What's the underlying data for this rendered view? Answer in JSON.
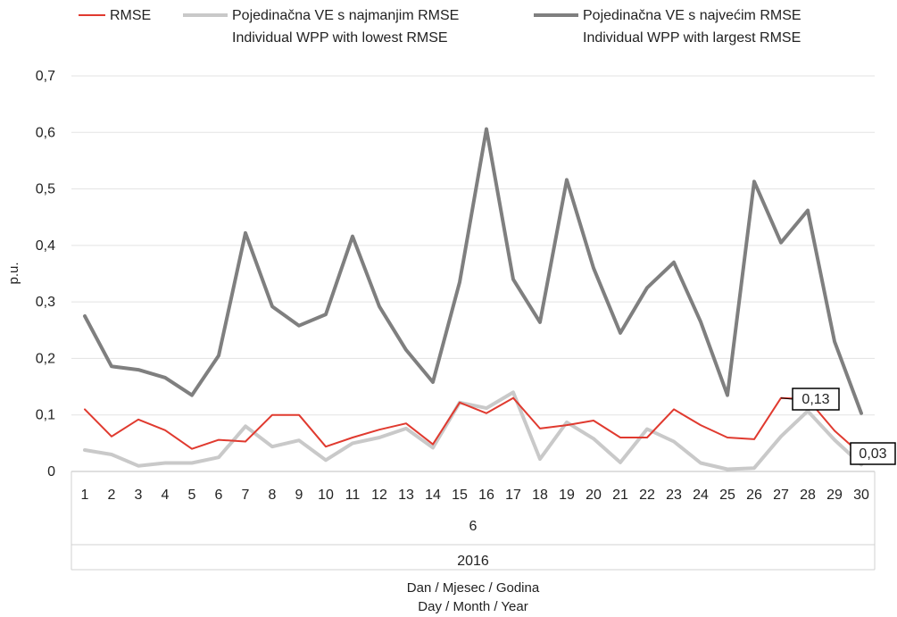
{
  "chart_data": {
    "type": "line",
    "ylabel": "p.u.",
    "ylim": [
      0,
      0.7
    ],
    "y_ticks": [
      "0",
      "0,1",
      "0,2",
      "0,3",
      "0,4",
      "0,5",
      "0,6",
      "0,7"
    ],
    "x": [
      "1",
      "2",
      "3",
      "4",
      "5",
      "6",
      "7",
      "8",
      "9",
      "10",
      "11",
      "12",
      "13",
      "14",
      "15",
      "16",
      "17",
      "18",
      "19",
      "20",
      "21",
      "22",
      "23",
      "24",
      "25",
      "26",
      "27",
      "28",
      "29",
      "30"
    ],
    "month_label": "6",
    "year_label": "2016",
    "xlabel_line1": "Dan / Mjesec / Godina",
    "xlabel_line2": "Day / Month / Year",
    "grid": "horizontal",
    "legend_position": "top",
    "series": [
      {
        "name": "RMSE",
        "color": "#e03a2f",
        "values": [
          0.11,
          0.062,
          0.092,
          0.073,
          0.04,
          0.056,
          0.053,
          0.1,
          0.1,
          0.044,
          0.06,
          0.074,
          0.085,
          0.048,
          0.122,
          0.103,
          0.13,
          0.076,
          0.082,
          0.09,
          0.06,
          0.06,
          0.11,
          0.082,
          0.06,
          0.057,
          0.13,
          0.128,
          0.072,
          0.03
        ]
      },
      {
        "name": "Pojedinačna VE s najmanjim RMSE",
        "name_line2": "Individual WPP with lowest RMSE",
        "color": "#c9c9c9",
        "values": [
          0.038,
          0.03,
          0.01,
          0.015,
          0.015,
          0.025,
          0.08,
          0.044,
          0.055,
          0.02,
          0.05,
          0.06,
          0.076,
          0.042,
          0.122,
          0.112,
          0.14,
          0.022,
          0.087,
          0.058,
          0.016,
          0.075,
          0.053,
          0.015,
          0.004,
          0.006,
          0.062,
          0.107,
          0.056,
          0.012
        ]
      },
      {
        "name": "Pojedinačna VE s najvećim RMSE",
        "name_line2": "Individual WPP with largest RMSE",
        "color": "#7f7f7f",
        "values": [
          0.275,
          0.186,
          0.18,
          0.166,
          0.135,
          0.205,
          0.422,
          0.292,
          0.258,
          0.278,
          0.416,
          0.292,
          0.215,
          0.158,
          0.335,
          0.606,
          0.34,
          0.264,
          0.516,
          0.36,
          0.245,
          0.325,
          0.37,
          0.265,
          0.135,
          0.513,
          0.405,
          0.462,
          0.23,
          0.103
        ]
      }
    ],
    "annotations": [
      {
        "text": "0,13",
        "series": 0,
        "index": 26
      },
      {
        "text": "0,03",
        "series": 0,
        "index": 29
      }
    ]
  }
}
